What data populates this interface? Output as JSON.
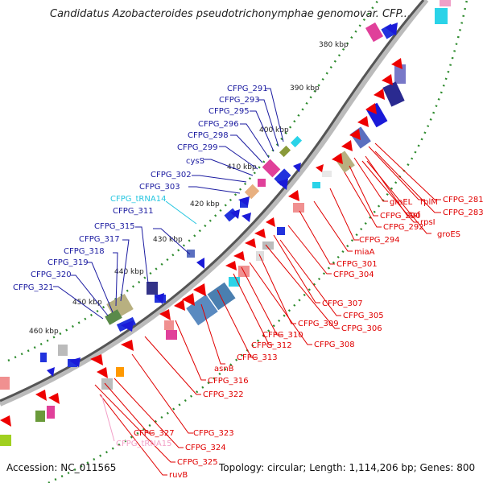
{
  "title": "Candidatus Azobacteroides pseudotrichonymphae genomovar. CFP...",
  "footer": {
    "accession": "Accession: NC_011565",
    "topology": "Topology: circular; Length: 1,114,206 bp; Genes: 800"
  },
  "scale_labels": [
    "380 kbp",
    "390 kbp",
    "400 kbp",
    "410 kbp",
    "420 kbp",
    "430 kbp",
    "440 kbp",
    "450 kbp",
    "460 kbp"
  ],
  "colors": {
    "left_labels": "#1a1aa0",
    "right_labels": "#e00000",
    "trna": "#26c6e0",
    "trna2": "#f2a0c8"
  },
  "left_labels": [
    {
      "text": "CFPG_291",
      "color": "blue"
    },
    {
      "text": "CFPG_293",
      "color": "blue"
    },
    {
      "text": "CFPG_295",
      "color": "blue"
    },
    {
      "text": "CFPG_296",
      "color": "blue"
    },
    {
      "text": "CFPG_298",
      "color": "blue"
    },
    {
      "text": "CFPG_299",
      "color": "blue"
    },
    {
      "text": "cysS",
      "color": "blue"
    },
    {
      "text": "CFPG_302",
      "color": "blue"
    },
    {
      "text": "CFPG_303",
      "color": "blue"
    },
    {
      "text": "CFPG_tRNA14",
      "color": "cyan"
    },
    {
      "text": "CFPG_311",
      "color": "blue"
    },
    {
      "text": "CFPG_315",
      "color": "blue"
    },
    {
      "text": "CFPG_317",
      "color": "blue"
    },
    {
      "text": "CFPG_318",
      "color": "blue"
    },
    {
      "text": "CFPG_319",
      "color": "blue"
    },
    {
      "text": "CFPG_320",
      "color": "blue"
    },
    {
      "text": "CFPG_321",
      "color": "blue"
    }
  ],
  "right_labels": [
    {
      "text": "CFPG_281"
    },
    {
      "text": "rplM"
    },
    {
      "text": "CFPG_283"
    },
    {
      "text": "tsf"
    },
    {
      "text": "rpsI"
    },
    {
      "text": "groEL"
    },
    {
      "text": "CFPG_290"
    },
    {
      "text": "groES"
    },
    {
      "text": "CFPG_292"
    },
    {
      "text": "CFPG_294"
    },
    {
      "text": "miaA"
    },
    {
      "text": "CFPG_301"
    },
    {
      "text": "CFPG_304"
    },
    {
      "text": "CFPG_307"
    },
    {
      "text": "CFPG_305"
    },
    {
      "text": "CFPG_306"
    },
    {
      "text": "CFPG_309"
    },
    {
      "text": "CFPG_308"
    },
    {
      "text": "CFPG_310"
    },
    {
      "text": "CFPG_312"
    },
    {
      "text": "CFPG_313"
    },
    {
      "text": "asnB"
    },
    {
      "text": "CFPG_316"
    },
    {
      "text": "CFPG_322"
    },
    {
      "text": "CFPG_323"
    },
    {
      "text": "CFPG_327"
    },
    {
      "text": "CFPG_tRNA15"
    },
    {
      "text": "CFPG_324"
    },
    {
      "text": "CFPG_325"
    },
    {
      "text": "ruvB"
    }
  ]
}
